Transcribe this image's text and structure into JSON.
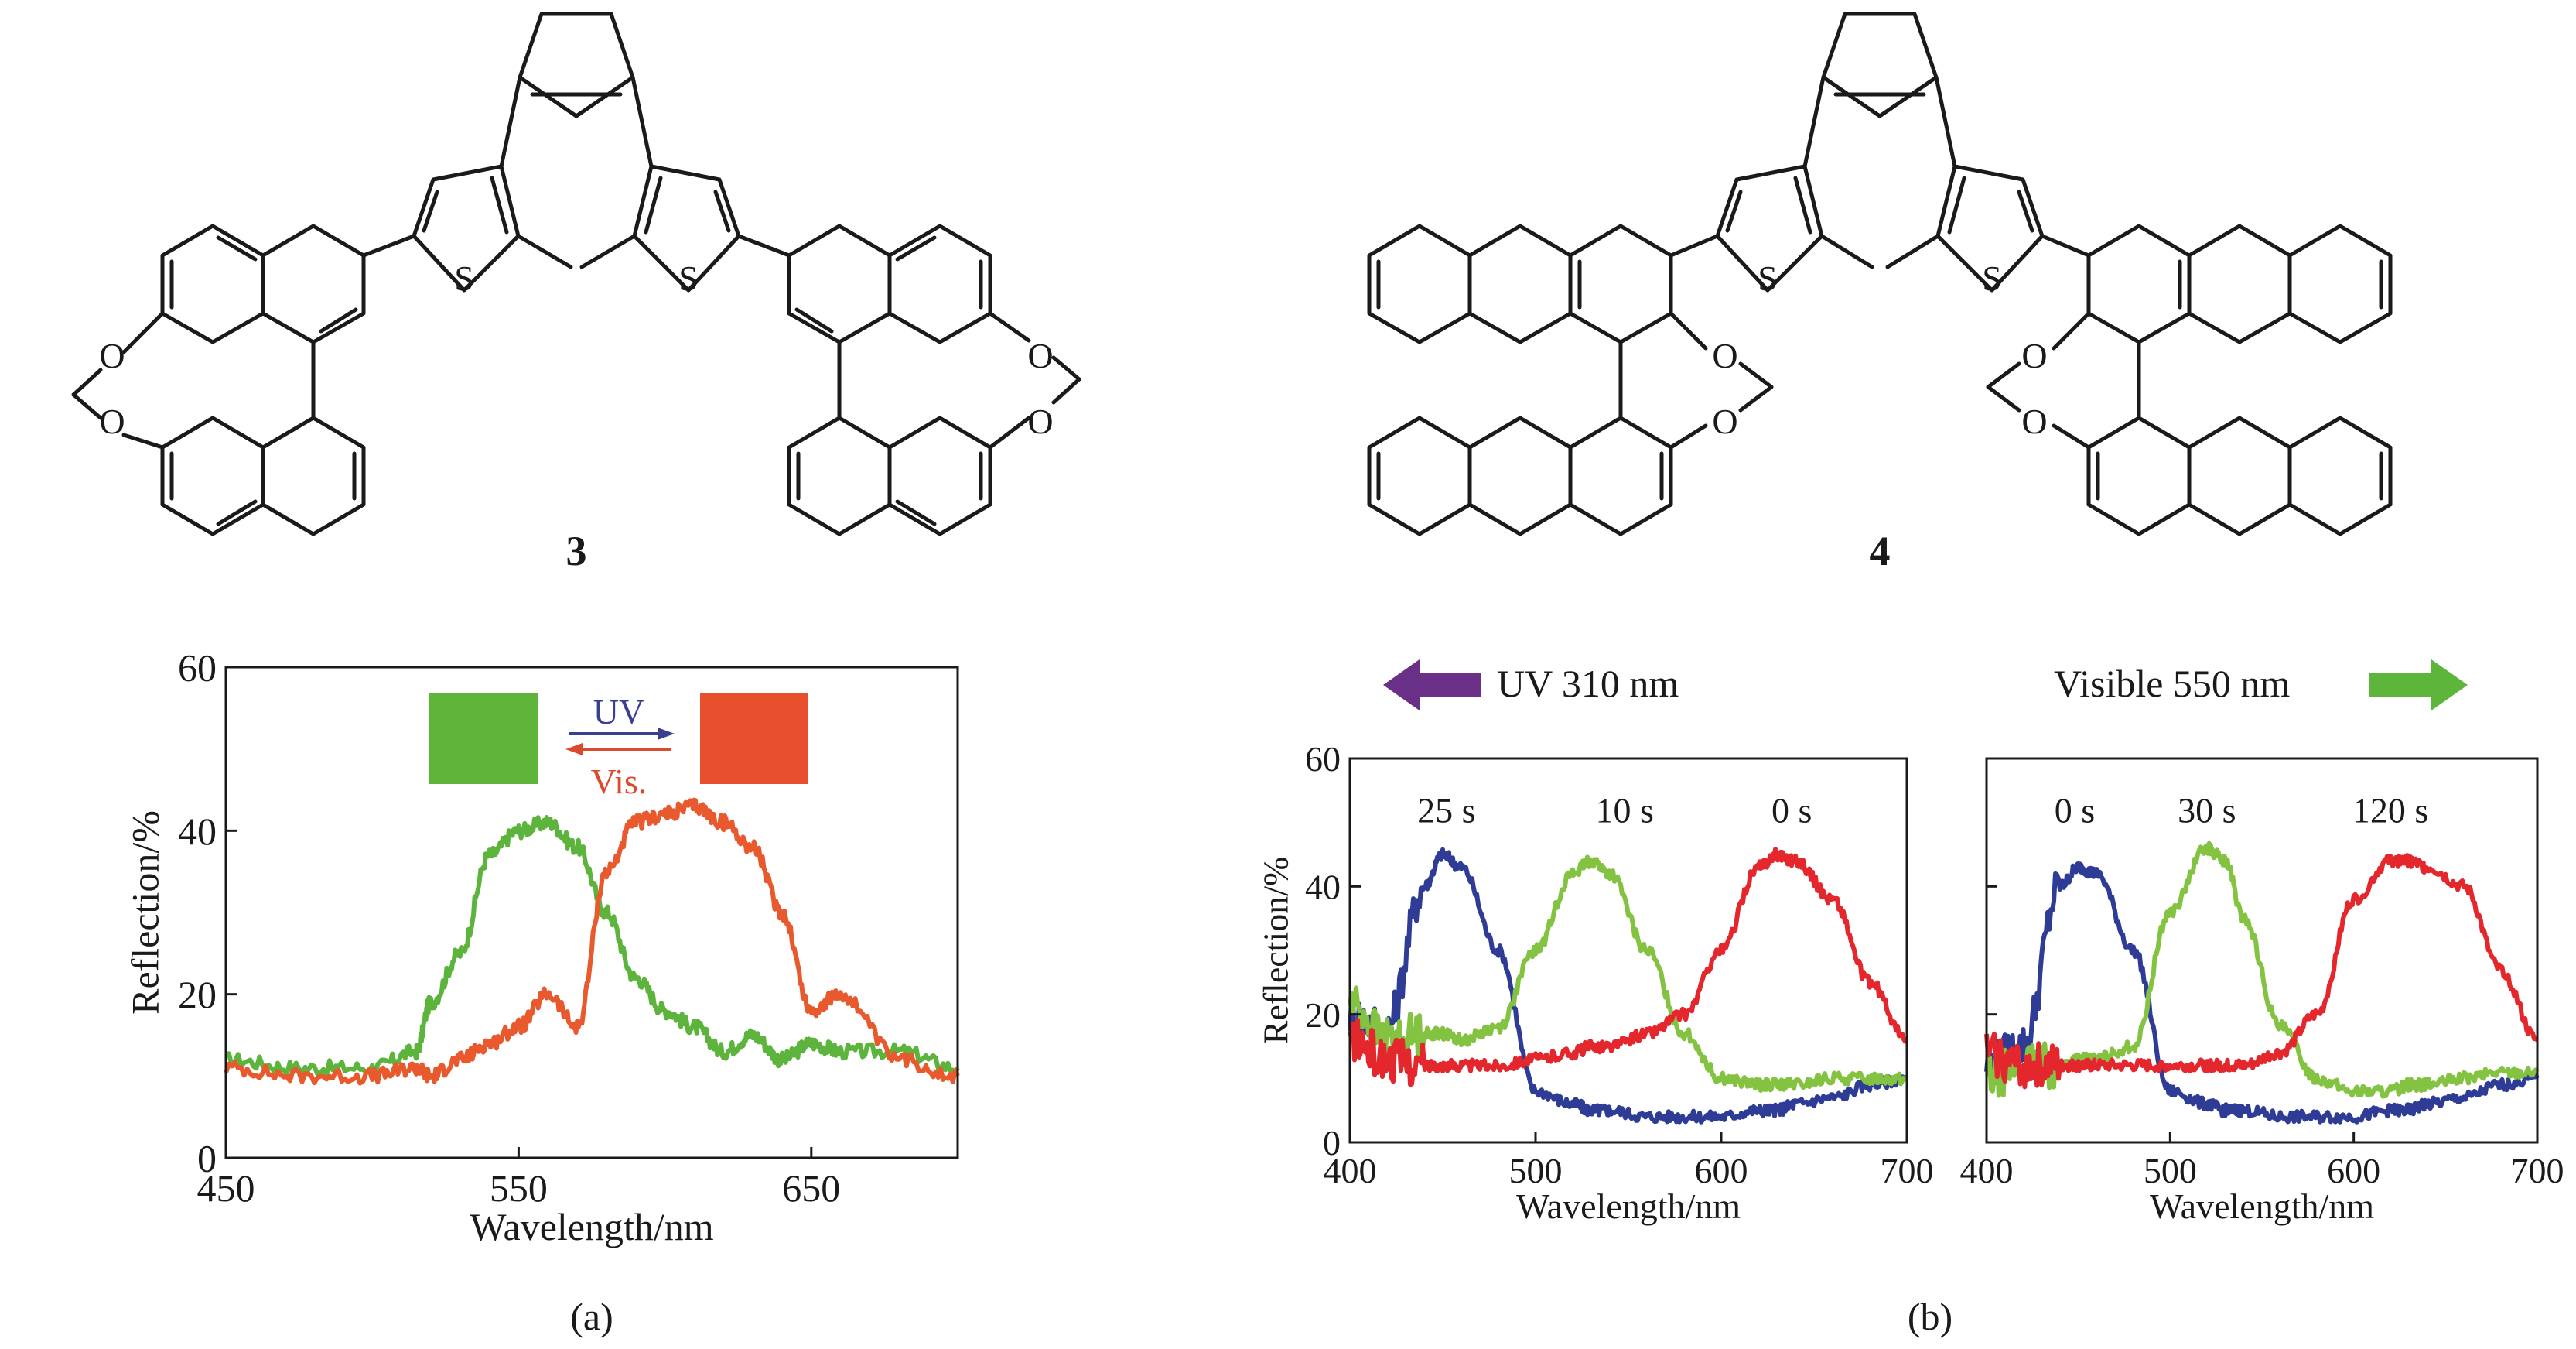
{
  "molecules": [
    {
      "number": "3",
      "sulfur": "S",
      "oxygen": "O"
    },
    {
      "number": "4",
      "sulfur": "S",
      "oxygen": "O"
    }
  ],
  "panel_labels": [
    "(a)",
    "(b)"
  ],
  "panel_a_legend": {
    "uv_label": "UV",
    "vis_label": "Vis.",
    "green": "#5fb43a",
    "red": "#e8502d",
    "uv_color": "#3b3f8f",
    "vis_color": "#d94a2e"
  },
  "panel_b_arrows": {
    "uv_label": "UV 310 nm",
    "vis_label": "Visible 550 nm",
    "uv_color": "#6a2f86",
    "vis_color": "#5db53b"
  },
  "chart_data": [
    {
      "type": "line",
      "xlabel": "Wavelength/nm",
      "ylabel": "Reflection/%",
      "xlim": [
        450,
        700
      ],
      "ylim": [
        0,
        60
      ],
      "xticks": [
        450,
        550,
        650
      ],
      "yticks": [
        0,
        20,
        40,
        60
      ],
      "x": [
        450,
        475,
        500,
        515,
        520,
        530,
        540,
        550,
        560,
        570,
        580,
        590,
        600,
        610,
        620,
        630,
        640,
        650,
        660,
        680,
        700
      ],
      "series": [
        {
          "color": "#5cb43c",
          "values": [
            12,
            11,
            11,
            13,
            19,
            25,
            37,
            40,
            41,
            38,
            30,
            22,
            18,
            16,
            13,
            15,
            12,
            14,
            13,
            13,
            11
          ]
        },
        {
          "color": "#e85a2d",
          "values": [
            11,
            10,
            10,
            11,
            10,
            12,
            14,
            16,
            20,
            16,
            35,
            41,
            42,
            43,
            41,
            38,
            30,
            18,
            20,
            12,
            10
          ]
        }
      ]
    },
    {
      "type": "line",
      "xlabel": "Wavelength/nm",
      "ylabel": "Reflection/%",
      "xlim": [
        400,
        700
      ],
      "ylim": [
        0,
        60
      ],
      "xticks": [
        400,
        500,
        600,
        700
      ],
      "yticks": [
        0,
        20,
        40,
        60
      ],
      "annotations": [
        {
          "text": "25 s",
          "x": 452,
          "y": 50
        },
        {
          "text": "10 s",
          "x": 548,
          "y": 50
        },
        {
          "text": "0 s",
          "x": 638,
          "y": 50
        }
      ],
      "x": [
        400,
        420,
        440,
        450,
        460,
        480,
        500,
        520,
        530,
        540,
        560,
        580,
        600,
        620,
        630,
        640,
        660,
        680,
        700
      ],
      "series": [
        {
          "color": "#2f3c96",
          "values": [
            20,
            18,
            40,
            45,
            43,
            30,
            8,
            6,
            5,
            5,
            4,
            4,
            4,
            5,
            5,
            6,
            7,
            9,
            10
          ]
        },
        {
          "color": "#84c341",
          "values": [
            22,
            16,
            17,
            17,
            16,
            18,
            30,
            42,
            44,
            42,
            30,
            17,
            10,
            9,
            9,
            9,
            10,
            10,
            10
          ]
        },
        {
          "color": "#e4262d",
          "values": [
            16,
            13,
            12,
            12,
            12,
            12,
            13,
            14,
            15,
            15,
            17,
            20,
            30,
            43,
            45,
            44,
            38,
            25,
            16
          ]
        }
      ]
    },
    {
      "type": "line",
      "xlabel": "Wavelength/nm",
      "ylabel": "",
      "xlim": [
        400,
        700
      ],
      "ylim": [
        0,
        60
      ],
      "xticks": [
        400,
        500,
        600,
        700
      ],
      "yticks": [
        0,
        20,
        40,
        60
      ],
      "annotations": [
        {
          "text": "0 s",
          "x": 448,
          "y": 50
        },
        {
          "text": "30 s",
          "x": 520,
          "y": 50
        },
        {
          "text": "120 s",
          "x": 620,
          "y": 50
        }
      ],
      "x": [
        400,
        420,
        440,
        450,
        460,
        480,
        500,
        520,
        530,
        540,
        560,
        580,
        600,
        620,
        630,
        640,
        660,
        680,
        700
      ],
      "series": [
        {
          "color": "#2f3c96",
          "values": [
            12,
            15,
            40,
            43,
            42,
            30,
            8,
            6,
            5,
            5,
            4,
            4,
            4,
            5,
            5,
            6,
            7,
            9,
            10
          ]
        },
        {
          "color": "#84c341",
          "values": [
            10,
            12,
            12,
            13,
            13,
            15,
            36,
            46,
            44,
            35,
            18,
            10,
            8,
            8,
            9,
            9,
            10,
            11,
            11
          ]
        },
        {
          "color": "#e4262d",
          "values": [
            14,
            12,
            12,
            12,
            12,
            12,
            12,
            12,
            12,
            12,
            14,
            20,
            38,
            44,
            44,
            43,
            40,
            27,
            16
          ]
        }
      ]
    }
  ]
}
